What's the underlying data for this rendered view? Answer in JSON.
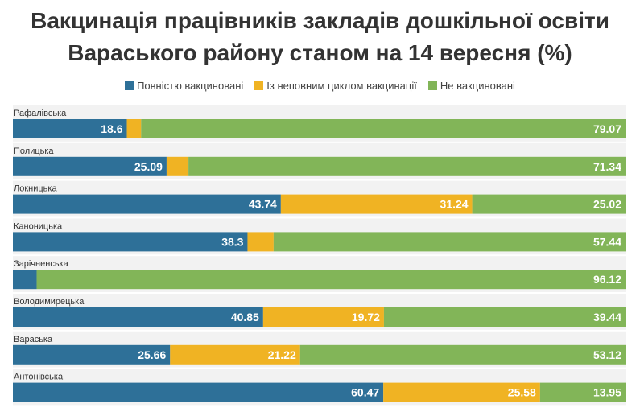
{
  "title_line1": "Вакцинація працівників закладів дошкільної освіти",
  "title_line2": "Вараського району станом на 14 вересня (%)",
  "colors": {
    "full": "#2e7098",
    "partial": "#f0b323",
    "none": "#82b558",
    "row_bg": "#f2f2f2"
  },
  "chart_data": {
    "type": "bar",
    "orientation": "horizontal",
    "stacked": true,
    "xlim": [
      0,
      100
    ],
    "categories": [
      "Рафалівська",
      "Полицька",
      "Локницька",
      "Каноницька",
      "Зарічненська",
      "Володимирецька",
      "Вараська",
      "Антонівська"
    ],
    "series": [
      {
        "name": "Повністю вакциновані",
        "values": [
          18.6,
          25.09,
          43.74,
          38.3,
          3.88,
          40.85,
          25.66,
          60.47
        ]
      },
      {
        "name": "Із неповним циклом вакцинації",
        "values": [
          2.33,
          3.57,
          31.24,
          4.26,
          0,
          19.72,
          21.22,
          25.58
        ]
      },
      {
        "name": "Не вакциновані",
        "values": [
          79.07,
          71.34,
          25.02,
          57.44,
          96.12,
          39.44,
          53.12,
          13.95
        ]
      }
    ],
    "labels": [
      [
        "18.6",
        "",
        "79.07"
      ],
      [
        "25.09",
        "",
        "71.34"
      ],
      [
        "43.74",
        "31.24",
        "25.02"
      ],
      [
        "38.3",
        "",
        "57.44"
      ],
      [
        "",
        "",
        "96.12"
      ],
      [
        "40.85",
        "19.72",
        "39.44"
      ],
      [
        "25.66",
        "21.22",
        "53.12"
      ],
      [
        "60.47",
        "25.58",
        "13.95"
      ]
    ],
    "legend_position": "top"
  }
}
